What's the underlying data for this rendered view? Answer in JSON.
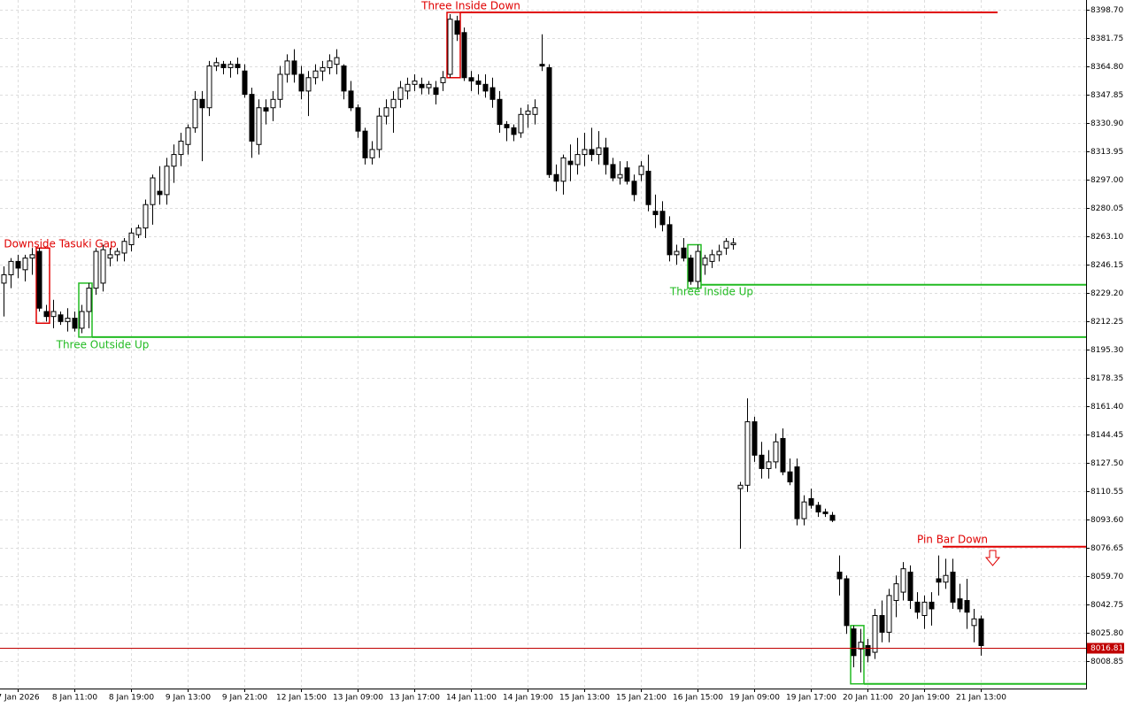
{
  "chart_data": {
    "type": "candlestick",
    "ylim": [
      7992.3,
      8404.5
    ],
    "yticks": [
      {
        "value": 8398.7,
        "label": "8398.70"
      },
      {
        "value": 8381.75,
        "label": "8381.75"
      },
      {
        "value": 8364.8,
        "label": "8364.80"
      },
      {
        "value": 8347.85,
        "label": "8347.85"
      },
      {
        "value": 8330.9,
        "label": "8330.90"
      },
      {
        "value": 8313.95,
        "label": "8313.95"
      },
      {
        "value": 8297.0,
        "label": "8297.00"
      },
      {
        "value": 8280.05,
        "label": "8280.05"
      },
      {
        "value": 8263.1,
        "label": "8263.10"
      },
      {
        "value": 8246.15,
        "label": "8246.15"
      },
      {
        "value": 8229.2,
        "label": "8229.20"
      },
      {
        "value": 8212.25,
        "label": "8212.25"
      },
      {
        "value": 8195.3,
        "label": "8195.30"
      },
      {
        "value": 8178.35,
        "label": "8178.35"
      },
      {
        "value": 8161.4,
        "label": "8161.40"
      },
      {
        "value": 8144.45,
        "label": "8144.45"
      },
      {
        "value": 8127.5,
        "label": "8127.50"
      },
      {
        "value": 8110.55,
        "label": "8110.55"
      },
      {
        "value": 8093.6,
        "label": "8093.60"
      },
      {
        "value": 8076.65,
        "label": "8076.65"
      },
      {
        "value": 8059.7,
        "label": "8059.70"
      },
      {
        "value": 8042.75,
        "label": "8042.75"
      },
      {
        "value": 8025.8,
        "label": "8025.80"
      },
      {
        "value": 8008.85,
        "label": "8008.85"
      }
    ],
    "grid": true,
    "current_price": 8016.81,
    "candle_colors": {
      "up": "#ffffff",
      "down": "#000000"
    },
    "categories": [
      null,
      null,
      "7 Jan 2026",
      null,
      null,
      null,
      null,
      null,
      null,
      null,
      "8 Jan 11:00",
      null,
      null,
      null,
      null,
      null,
      null,
      null,
      "8 Jan 19:00",
      null,
      null,
      null,
      null,
      null,
      null,
      null,
      "9 Jan 13:00",
      null,
      null,
      null,
      null,
      null,
      null,
      null,
      "9 Jan 21:00",
      null,
      null,
      null,
      null,
      null,
      null,
      null,
      "12 Jan 15:00",
      null,
      null,
      null,
      null,
      null,
      null,
      null,
      "13 Jan 09:00",
      null,
      null,
      null,
      null,
      null,
      null,
      null,
      "13 Jan 17:00",
      null,
      null,
      null,
      null,
      null,
      null,
      null,
      "14 Jan 11:00",
      null,
      null,
      null,
      null,
      null,
      null,
      null,
      "14 Jan 19:00",
      null,
      null,
      null,
      null,
      null,
      null,
      null,
      "15 Jan 13:00",
      null,
      null,
      null,
      null,
      null,
      null,
      null,
      "15 Jan 21:00",
      null,
      null,
      null,
      null,
      null,
      null,
      null,
      "16 Jan 15:00",
      null,
      null,
      null,
      null,
      null,
      null,
      null,
      "19 Jan 09:00",
      null,
      null,
      null,
      null,
      null,
      null,
      null,
      "19 Jan 17:00",
      null,
      null,
      null,
      null,
      null,
      null,
      null,
      "20 Jan 11:00",
      null,
      null,
      null,
      null,
      null,
      null,
      null,
      "20 Jan 19:00",
      null,
      null,
      null,
      null,
      null,
      null,
      null,
      "21 Jan 13:00"
    ],
    "candles": [
      [
        8235,
        8245,
        8215,
        8240
      ],
      [
        8240,
        8250,
        8232,
        8248
      ],
      [
        8248,
        8252,
        8238,
        8244
      ],
      [
        8243,
        8252,
        8236,
        8250
      ],
      [
        8250,
        8256,
        8240,
        8252
      ],
      [
        8254,
        8256,
        8218,
        8220
      ],
      [
        8218,
        8222,
        8212,
        8215
      ],
      [
        8215,
        8225,
        8208,
        8218
      ],
      [
        8216,
        8218,
        8210,
        8212
      ],
      [
        8212,
        8220,
        8206,
        8214
      ],
      [
        8214,
        8218,
        8206,
        8208
      ],
      [
        8208,
        8222,
        8205,
        8218
      ],
      [
        8218,
        8235,
        8208,
        8232
      ],
      [
        8232,
        8256,
        8228,
        8254
      ],
      [
        8235,
        8258,
        8230,
        8255
      ],
      [
        8250,
        8256,
        8245,
        8252
      ],
      [
        8252,
        8256,
        8248,
        8254
      ],
      [
        8253,
        8262,
        8248,
        8260
      ],
      [
        8258,
        8268,
        8254,
        8265
      ],
      [
        8264,
        8270,
        8262,
        8268
      ],
      [
        8268,
        8285,
        8262,
        8282
      ],
      [
        8282,
        8300,
        8270,
        8298
      ],
      [
        8290,
        8305,
        8282,
        8288
      ],
      [
        8288,
        8310,
        8282,
        8305
      ],
      [
        8305,
        8318,
        8295,
        8312
      ],
      [
        8312,
        8325,
        8305,
        8320
      ],
      [
        8318,
        8330,
        8312,
        8328
      ],
      [
        8328,
        8350,
        8325,
        8345
      ],
      [
        8345,
        8350,
        8308,
        8340
      ],
      [
        8340,
        8368,
        8335,
        8365
      ],
      [
        8365,
        8370,
        8362,
        8367
      ],
      [
        8366,
        8368,
        8360,
        8364
      ],
      [
        8364,
        8368,
        8358,
        8366
      ],
      [
        8366,
        8370,
        8360,
        8364
      ],
      [
        8362,
        8366,
        8346,
        8348
      ],
      [
        8348,
        8352,
        8310,
        8320
      ],
      [
        8318,
        8345,
        8312,
        8340
      ],
      [
        8340,
        8345,
        8330,
        8338
      ],
      [
        8340,
        8350,
        8332,
        8345
      ],
      [
        8345,
        8365,
        8340,
        8360
      ],
      [
        8360,
        8372,
        8355,
        8368
      ],
      [
        8368,
        8375,
        8355,
        8360
      ],
      [
        8360,
        8365,
        8345,
        8350
      ],
      [
        8350,
        8362,
        8335,
        8358
      ],
      [
        8358,
        8366,
        8354,
        8362
      ],
      [
        8362,
        8368,
        8356,
        8364
      ],
      [
        8364,
        8372,
        8360,
        8368
      ],
      [
        8366,
        8375,
        8360,
        8370
      ],
      [
        8365,
        8366,
        8345,
        8350
      ],
      [
        8350,
        8356,
        8338,
        8340
      ],
      [
        8340,
        8342,
        8322,
        8326
      ],
      [
        8326,
        8328,
        8306,
        8310
      ],
      [
        8310,
        8320,
        8306,
        8315
      ],
      [
        8315,
        8340,
        8310,
        8335
      ],
      [
        8335,
        8345,
        8330,
        8340
      ],
      [
        8340,
        8350,
        8325,
        8345
      ],
      [
        8345,
        8356,
        8340,
        8352
      ],
      [
        8350,
        8358,
        8345,
        8354
      ],
      [
        8354,
        8360,
        8350,
        8356
      ],
      [
        8354,
        8358,
        8348,
        8352
      ],
      [
        8352,
        8356,
        8348,
        8354
      ],
      [
        8352,
        8356,
        8342,
        8348
      ],
      [
        8355,
        8362,
        8350,
        8358
      ],
      [
        8360,
        8396,
        8358,
        8393
      ],
      [
        8392,
        8395,
        8380,
        8384
      ],
      [
        8385,
        8388,
        8356,
        8358
      ],
      [
        8358,
        8362,
        8350,
        8356
      ],
      [
        8356,
        8360,
        8348,
        8354
      ],
      [
        8354,
        8360,
        8346,
        8350
      ],
      [
        8352,
        8358,
        8340,
        8345
      ],
      [
        8345,
        8350,
        8325,
        8330
      ],
      [
        8330,
        8332,
        8320,
        8328
      ],
      [
        8328,
        8330,
        8320,
        8324
      ],
      [
        8325,
        8340,
        8322,
        8336
      ],
      [
        8336,
        8342,
        8328,
        8338
      ],
      [
        8336,
        8345,
        8330,
        8340
      ],
      [
        8366,
        8384,
        8362,
        8365
      ],
      [
        8364,
        8366,
        8298,
        8300
      ],
      [
        8300,
        8306,
        8290,
        8296
      ],
      [
        8296,
        8312,
        8288,
        8310
      ],
      [
        8308,
        8318,
        8296,
        8306
      ],
      [
        8306,
        8322,
        8300,
        8312
      ],
      [
        8312,
        8325,
        8305,
        8315
      ],
      [
        8315,
        8328,
        8308,
        8312
      ],
      [
        8312,
        8326,
        8306,
        8316
      ],
      [
        8316,
        8322,
        8300,
        8306
      ],
      [
        8306,
        8310,
        8296,
        8298
      ],
      [
        8298,
        8308,
        8294,
        8300
      ],
      [
        8304,
        8308,
        8294,
        8296
      ],
      [
        8296,
        8300,
        8284,
        8288
      ],
      [
        8300,
        8308,
        8296,
        8305
      ],
      [
        8302,
        8312,
        8278,
        8282
      ],
      [
        8278,
        8288,
        8268,
        8276
      ],
      [
        8278,
        8284,
        8266,
        8270
      ],
      [
        8270,
        8275,
        8248,
        8252
      ],
      [
        8252,
        8258,
        8246,
        8254
      ],
      [
        8256,
        8262,
        8248,
        8250
      ],
      [
        8250,
        8252,
        8234,
        8236
      ],
      [
        8236,
        8258,
        8232,
        8254
      ],
      [
        8246,
        8252,
        8240,
        8250
      ],
      [
        8248,
        8255,
        8244,
        8252
      ],
      [
        8252,
        8258,
        8248,
        8254
      ],
      [
        8256,
        8262,
        8252,
        8260
      ],
      [
        8258,
        8262,
        8255,
        8259
      ],
      [
        8112,
        8116,
        8076,
        8114
      ],
      [
        8114,
        8166,
        8110,
        8152
      ],
      [
        8152,
        8155,
        8128,
        8132
      ],
      [
        8132,
        8140,
        8118,
        8124
      ],
      [
        8124,
        8135,
        8118,
        8128
      ],
      [
        8128,
        8145,
        8124,
        8140
      ],
      [
        8142,
        8148,
        8120,
        8122
      ],
      [
        8122,
        8130,
        8114,
        8116
      ],
      [
        8125,
        8130,
        8090,
        8094
      ],
      [
        8094,
        8108,
        8090,
        8104
      ],
      [
        8106,
        8112,
        8100,
        8102
      ],
      [
        8102,
        8104,
        8095,
        8098
      ],
      [
        8098,
        8100,
        8095,
        8097
      ],
      [
        8096,
        8098,
        8092,
        8093
      ],
      [
        8062,
        8072,
        8048,
        8058
      ],
      [
        8058,
        8060,
        8025,
        8030
      ],
      [
        8028,
        8030,
        8005,
        8012
      ],
      [
        8016,
        8028,
        8002,
        8020
      ],
      [
        8018,
        8022,
        8008,
        8012
      ],
      [
        8014,
        8040,
        8010,
        8036
      ],
      [
        8036,
        8045,
        8020,
        8026
      ],
      [
        8026,
        8052,
        8020,
        8048
      ],
      [
        8045,
        8060,
        8035,
        8055
      ],
      [
        8050,
        8068,
        8045,
        8064
      ],
      [
        8062,
        8066,
        8040,
        8045
      ],
      [
        8044,
        8050,
        8034,
        8038
      ],
      [
        8036,
        8048,
        8028,
        8044
      ],
      [
        8044,
        8050,
        8030,
        8040
      ],
      [
        8058,
        8072,
        8048,
        8056
      ],
      [
        8056,
        8070,
        8052,
        8060
      ],
      [
        8062,
        8070,
        8040,
        8044
      ],
      [
        8046,
        8055,
        8038,
        8040
      ],
      [
        8045,
        8058,
        8028,
        8038
      ],
      [
        8030,
        8040,
        8020,
        8034
      ],
      [
        8034,
        8036,
        8012,
        8018
      ]
    ],
    "patterns": [
      {
        "name": "Downside Tasuki Gap",
        "color": "#e00000",
        "level": 8211
      },
      {
        "name": "Three Outside Up",
        "color": "#22bb22",
        "level": 8202.7
      },
      {
        "name": "Three Inside Down",
        "color": "#e00000",
        "level": 8397.1
      },
      {
        "name": "Three Inside Up",
        "color": "#22bb22",
        "level": 8234.0
      },
      {
        "name": "Pin Bar Down",
        "color": "#e00000",
        "level": 8077.2
      },
      {
        "color": "#22bb22",
        "level": 7995.1
      }
    ]
  }
}
